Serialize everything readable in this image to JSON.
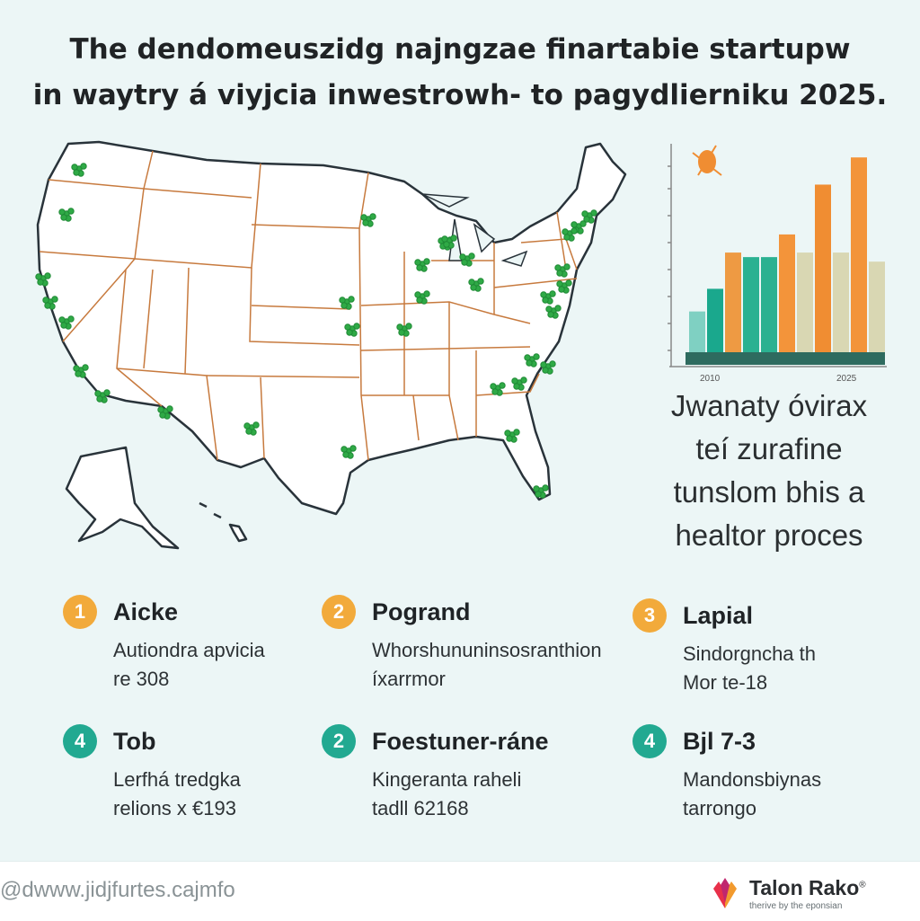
{
  "title": {
    "line1": "The dendomeuszidg najngzae finartabie startupw",
    "line2": "in waytry á viyjcia inwestrowh- to pagydlierniku 2025."
  },
  "tagline": [
    "Jwanaty óvirax",
    "teí zurafine",
    "tunslom bhis a",
    "healtor proces"
  ],
  "items": [
    {
      "number": "1",
      "title": "Aicke",
      "line1": "Autiondra apvicia",
      "line2": "re 308",
      "color": "#f2aa3b"
    },
    {
      "number": "2",
      "title": "Pogrand",
      "line1": "Whorshununinsosranthion",
      "line2": "íxarrmor",
      "color": "#f2aa3b"
    },
    {
      "number": "3",
      "title": "Lapial",
      "line1": "Sindorgncha th",
      "line2": "Mor te-18",
      "color": "#f2aa3b"
    },
    {
      "number": "4",
      "title": "Tob",
      "line1": "Lerfhá tredgka",
      "line2": "relions x €193",
      "color": "#22a991"
    },
    {
      "number": "2",
      "title": "Foestuner-ráne",
      "line1": "Kingeranta raheli",
      "line2": "tadll 62168",
      "color": "#22a991"
    },
    {
      "number": "4",
      "title": "Bjl 7-3",
      "line1": "Mandonsbiynas",
      "line2": "tarrongo",
      "color": "#22a991"
    }
  ],
  "chart_data": {
    "type": "bar",
    "categories": [
      "2010",
      "2025"
    ],
    "series": [
      {
        "color": "#7fd0c2",
        "values": [
          1.0,
          0.0
        ]
      },
      {
        "color": "#1aa88d",
        "values": [
          1.4,
          2.2
        ]
      },
      {
        "color": "#ee9a43",
        "values": [
          1.7,
          3.1
        ]
      },
      {
        "color": "#2bb191",
        "values": [
          2.5,
          2.6
        ]
      },
      {
        "color": "#d9d7b3",
        "values": [
          2.2,
          2.3
        ]
      },
      {
        "color": "#f3943a",
        "values": [
          3.6,
          4.3
        ]
      }
    ],
    "bar_heights": [
      0.9,
      1.4,
      2.2,
      2.1,
      2.1,
      2.6,
      2.2,
      3.7,
      2.2,
      4.3,
      2.0
    ],
    "bar_colors": [
      "#7fd0c2",
      "#1aa88d",
      "#ee9a43",
      "#2bb191",
      "#2bb191",
      "#f3943a",
      "#d9d7b3",
      "#f08d32",
      "#d9d7b3",
      "#f3943a",
      "#d9d7b3"
    ],
    "ylim": [
      0,
      4.8
    ],
    "grid": false,
    "legend": "none"
  },
  "map": {
    "land_color": "#ffffff",
    "border_color": "#c77a3e",
    "marker_color": "#2faa46"
  },
  "footer": {
    "website": "@dwww.jidjfurtes.cajmfo",
    "brand_name": "Talon Rako",
    "brand_mark": "®",
    "brand_tagline": "therive by the eponsian"
  },
  "icons": {
    "chart_accent": "leaf-icon",
    "brand": "brand-logo-icon"
  }
}
